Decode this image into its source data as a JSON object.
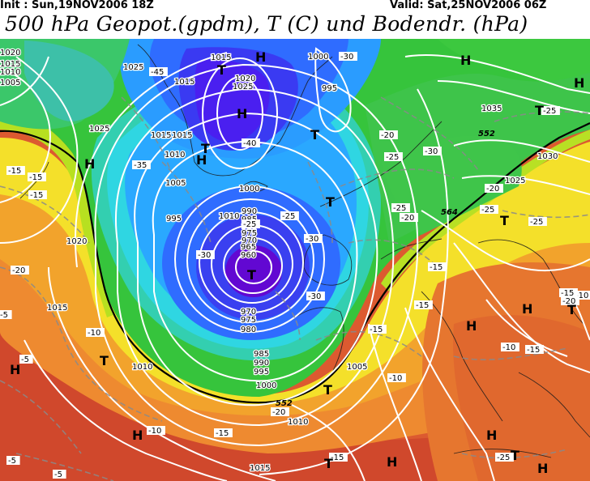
{
  "header": {
    "init": "Init : Sun,19NOV2006 18Z",
    "valid": "Valid: Sat,25NOV2006 06Z",
    "title": "500 hPa Geopot.(gpdm), T (C) und Bodendr. (hPa)"
  },
  "map": {
    "pressure_labels": [
      "1020",
      "1015",
      "1010",
      "1005",
      "1025",
      "1015",
      "1020",
      "1025",
      "1015",
      "1015",
      "1010",
      "1000",
      "995",
      "1025",
      "1015",
      "1005",
      "1000",
      "995",
      "990",
      "985",
      "980",
      "975",
      "970",
      "965",
      "960",
      "970",
      "975",
      "980",
      "985",
      "990",
      "995",
      "1000",
      "1005",
      "1010",
      "1015",
      "1010",
      "1020",
      "1030",
      "1035",
      "1025",
      "1015",
      "1010"
    ],
    "temperature_labels": [
      "-45",
      "-40",
      "-35",
      "-30",
      "-30",
      "-25",
      "-25",
      "-30",
      "-30",
      "-25",
      "-25",
      "-20",
      "-20",
      "-20",
      "-15",
      "-15",
      "-15",
      "-15",
      "-15",
      "-15",
      "-10",
      "-10",
      "-10",
      "-10",
      "-5",
      "-5",
      "-5",
      "-5",
      "-20",
      "-30",
      "-25",
      "-25",
      "-15",
      "-15",
      "-10",
      "-15",
      "-20",
      "-25",
      "-25",
      "-20",
      "-15"
    ],
    "geopotential_labels": [
      "552",
      "564",
      "552"
    ],
    "pressure_systems": [
      "H",
      "H",
      "H",
      "H",
      "H",
      "H",
      "H",
      "H",
      "H",
      "H",
      "H",
      "H",
      "H",
      "T",
      "T",
      "T",
      "T",
      "T",
      "T",
      "T",
      "T",
      "T",
      "T",
      "T",
      "T"
    ],
    "colors": {
      "deep_violet": "#5a00c8",
      "blue_dark": "#3a2af0",
      "blue": "#2b6cff",
      "blue_light": "#2aa7ff",
      "cyan": "#2fd2e8",
      "teal": "#2fc9a0",
      "green": "#35c43a",
      "green_yellow": "#a8df20",
      "yellow": "#f3e425",
      "orange": "#f2a22a",
      "orange_red": "#e4762f",
      "red": "#d65030"
    }
  }
}
